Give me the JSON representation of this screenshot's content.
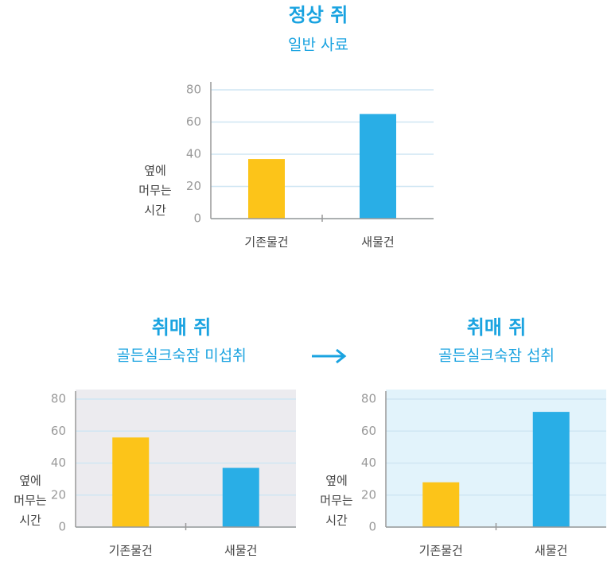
{
  "chart_data": [
    {
      "type": "bar",
      "title": "정상 쥐",
      "subtitle": "일반 사료",
      "ylabel": [
        "옆에",
        "머무는",
        "시간"
      ],
      "categories": [
        "기존물건",
        "새물건"
      ],
      "values": [
        37,
        65
      ],
      "colors": [
        "#fcc419",
        "#29aee6"
      ],
      "ylim": [
        0,
        80
      ],
      "yticks": [
        0,
        20,
        40,
        60,
        80
      ],
      "grid": true,
      "background": "#ffffff"
    },
    {
      "type": "bar",
      "title": "취매 쥐",
      "subtitle": "골든실크숙잠 미섭취",
      "ylabel": [
        "옆에",
        "머무는",
        "시간"
      ],
      "categories": [
        "기존물건",
        "새물건"
      ],
      "values": [
        56,
        37
      ],
      "colors": [
        "#fcc419",
        "#29aee6"
      ],
      "ylim": [
        0,
        80
      ],
      "yticks": [
        0,
        20,
        40,
        60,
        80
      ],
      "grid": true,
      "background": "#ecebef"
    },
    {
      "type": "bar",
      "title": "취매 쥐",
      "subtitle": "골든실크숙잠 섭취",
      "ylabel": [
        "옆에",
        "머무는",
        "시간"
      ],
      "categories": [
        "기존물건",
        "새물건"
      ],
      "values": [
        28,
        72
      ],
      "colors": [
        "#fcc419",
        "#29aee6"
      ],
      "ylim": [
        0,
        80
      ],
      "yticks": [
        0,
        20,
        40,
        60,
        80
      ],
      "grid": true,
      "background": "#e2f3fb"
    }
  ]
}
